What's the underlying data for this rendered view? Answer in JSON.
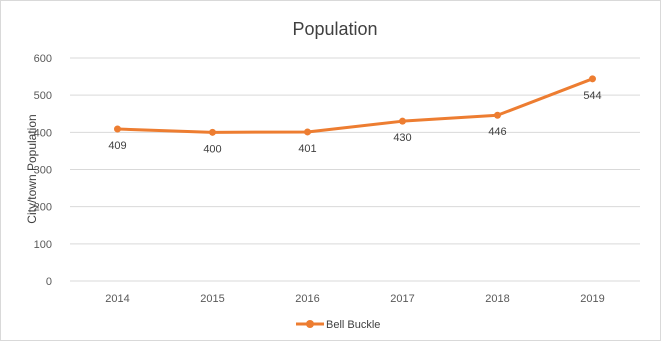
{
  "chart_data": {
    "type": "line",
    "title": "Population",
    "xlabel": "",
    "ylabel": "City/town Population",
    "categories": [
      "2014",
      "2015",
      "2016",
      "2017",
      "2018",
      "2019"
    ],
    "ylim": [
      0,
      600
    ],
    "yticks": [
      0,
      100,
      200,
      300,
      400,
      500,
      600
    ],
    "grid": true,
    "legend": "bottom",
    "series": [
      {
        "name": "Bell Buckle",
        "color": "#ED7D31",
        "values": [
          409,
          400,
          401,
          430,
          446,
          544
        ],
        "labels": [
          "409",
          "400",
          "401",
          "430",
          "446",
          "544"
        ]
      }
    ]
  }
}
